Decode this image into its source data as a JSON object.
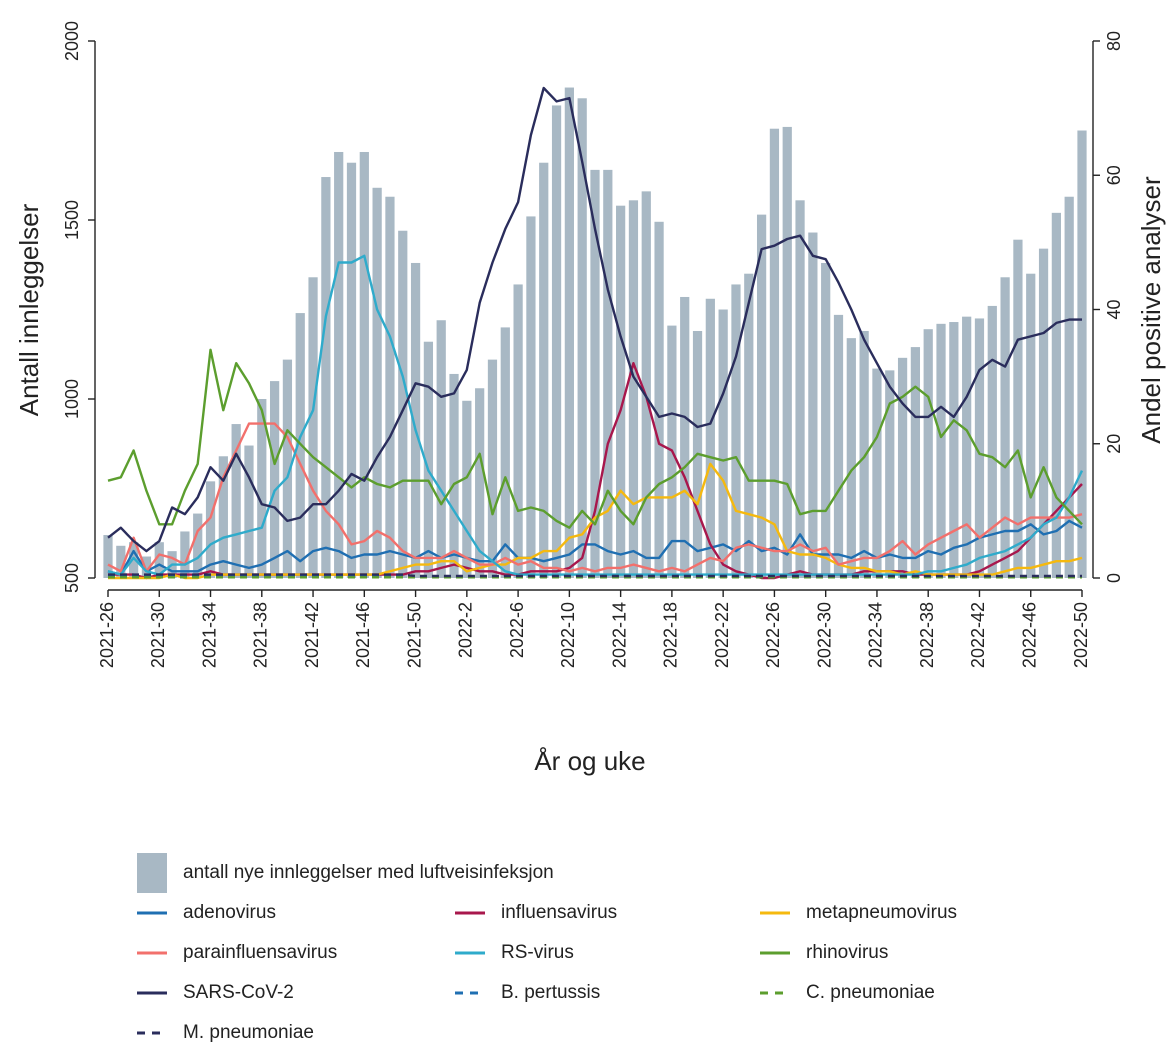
{
  "chart_data": {
    "type": "bar",
    "y_label": "Antall innleggelser",
    "y2_label": "Andel positive analyser",
    "x_label": "År og uke",
    "ylim": [
      500,
      2000
    ],
    "yticks": [
      500,
      1000,
      1500,
      2000
    ],
    "y2lim": [
      0,
      80
    ],
    "y2ticks": [
      0,
      20,
      40,
      60,
      80
    ],
    "categories": [
      "2021-26",
      null,
      null,
      null,
      "2021-30",
      null,
      null,
      null,
      "2021-34",
      null,
      null,
      null,
      "2021-38",
      null,
      null,
      null,
      "2021-42",
      null,
      null,
      null,
      "2021-46",
      null,
      null,
      null,
      "2021-50",
      null,
      null,
      null,
      "2022-2",
      null,
      null,
      null,
      "2022-6",
      null,
      null,
      null,
      "2022-10",
      null,
      null,
      null,
      "2022-14",
      null,
      null,
      null,
      "2022-18",
      null,
      null,
      null,
      "2022-22",
      null,
      null,
      null,
      "2022-26",
      null,
      null,
      null,
      "2022-30",
      null,
      null,
      null,
      "2022-34",
      null,
      null,
      null,
      "2022-38",
      null,
      null,
      null,
      "2022-42",
      null,
      null,
      null,
      "2022-46",
      null,
      null,
      null,
      "2022-50"
    ],
    "series": [
      {
        "name": "antall nye innleggelser med luftveisinfeksjon",
        "type": "bar",
        "color": "#a8b8c4",
        "values": [
          620,
          590,
          600,
          560,
          600,
          575,
          630,
          680,
          770,
          840,
          930,
          870,
          1000,
          1050,
          1110,
          1240,
          1340,
          1620,
          1690,
          1660,
          1690,
          1590,
          1565,
          1470,
          1380,
          1160,
          1220,
          1070,
          995,
          1030,
          1110,
          1200,
          1320,
          1510,
          1660,
          1820,
          1870,
          1840,
          1640,
          1640,
          1540,
          1555,
          1580,
          1495,
          1205,
          1285,
          1190,
          1280,
          1250,
          1320,
          1350,
          1515,
          1755,
          1760,
          1555,
          1465,
          1380,
          1235,
          1170,
          1190,
          1085,
          1080,
          1115,
          1145,
          1195,
          1210,
          1215,
          1230,
          1225,
          1260,
          1340,
          1445,
          1350,
          1420,
          1520,
          1565,
          1750
        ]
      },
      {
        "name": "adenovirus",
        "type": "line",
        "axis": "y2",
        "dash": false,
        "color": "#1f6fb2",
        "values": [
          1,
          0.5,
          4,
          1,
          2,
          1,
          1,
          1,
          2,
          2.5,
          2,
          1.5,
          2,
          3,
          4,
          2.5,
          4,
          4.5,
          4,
          3,
          3.5,
          3.5,
          4,
          3.5,
          3,
          4,
          3,
          3.5,
          3,
          2.5,
          2.5,
          5,
          3,
          3,
          2.5,
          3,
          3.5,
          5,
          5,
          4,
          3.5,
          4,
          3,
          3,
          5.5,
          5.5,
          4,
          4.5,
          5,
          4,
          5.5,
          4,
          4.5,
          3.5,
          6.5,
          3.5,
          3.5,
          3.5,
          3,
          4,
          3,
          3.5,
          3,
          3,
          4,
          3.5,
          4.5,
          5,
          6,
          6.5,
          7,
          7,
          8,
          6.5,
          7,
          8.5,
          7.5
        ]
      },
      {
        "name": "influensavirus",
        "type": "line",
        "axis": "y2",
        "dash": false,
        "color": "#a8174c",
        "values": [
          0.5,
          0.5,
          0.5,
          0,
          0.5,
          0.5,
          0.5,
          0.5,
          1,
          0.5,
          0.5,
          0.5,
          0.5,
          0.5,
          0.5,
          0.5,
          0.5,
          0.5,
          0.5,
          0.5,
          0.5,
          0.5,
          0.5,
          0.5,
          1,
          1,
          1.5,
          2,
          1.5,
          1,
          1,
          0.5,
          0.5,
          1,
          1,
          1,
          1.5,
          3,
          10,
          20,
          25,
          32,
          27,
          20,
          19,
          15,
          10,
          5,
          2,
          1,
          0.5,
          0,
          0,
          0.5,
          1,
          0.5,
          0.5,
          0.5,
          0.5,
          1,
          1,
          1,
          1,
          0.5,
          0.5,
          0.5,
          0.5,
          0.5,
          1,
          2,
          3,
          4,
          6,
          8,
          10,
          12,
          14
        ]
      },
      {
        "name": "metapneumovirus",
        "type": "line",
        "axis": "y2",
        "dash": false,
        "color": "#f5b90f",
        "values": [
          0,
          0,
          0,
          0,
          0,
          0.5,
          0,
          0,
          0.5,
          0.5,
          0.5,
          0.5,
          0.5,
          0.5,
          0.5,
          0.5,
          0.5,
          0.5,
          0.5,
          0.5,
          0.5,
          0.5,
          1,
          1.5,
          2,
          2,
          2.5,
          2.5,
          1,
          1.5,
          2,
          2,
          3,
          3,
          4,
          4,
          6,
          6.5,
          9,
          10,
          13,
          11,
          12,
          12,
          12,
          13,
          11,
          17,
          14.5,
          10,
          9.5,
          9,
          8,
          4,
          3.5,
          3.5,
          3,
          2,
          1.5,
          1.5,
          1,
          1,
          0.5,
          1,
          0.5,
          0.5,
          0.5,
          0.5,
          0.5,
          0.5,
          1,
          1.5,
          1.5,
          2,
          2.5,
          2.5,
          3
        ]
      },
      {
        "name": "parainfluensavirus",
        "type": "line",
        "axis": "y2",
        "dash": false,
        "color": "#f2706c",
        "values": [
          2,
          1,
          6,
          1,
          3.5,
          3,
          2,
          7,
          9,
          15,
          19,
          23,
          23,
          23,
          21,
          17,
          13,
          10,
          8,
          5,
          5.5,
          7,
          6,
          4,
          3,
          3,
          3,
          4,
          3,
          2,
          2,
          3,
          2,
          2.5,
          1.5,
          1.5,
          1,
          1.5,
          1,
          1.5,
          1.5,
          2,
          1.5,
          1,
          1.5,
          1,
          2,
          3,
          2.5,
          4.5,
          5,
          4.5,
          4,
          4,
          5,
          4,
          4.5,
          2,
          2.5,
          3,
          3,
          4,
          5.5,
          3.5,
          5,
          6,
          7,
          8,
          6,
          7.5,
          9,
          8,
          9,
          9,
          9,
          9,
          9.5
        ]
      },
      {
        "name": "RS-virus",
        "type": "line",
        "axis": "y2",
        "dash": false,
        "color": "#2fabcb",
        "values": [
          1,
          0.5,
          3,
          1,
          0.5,
          2,
          2,
          3,
          5,
          6,
          6.5,
          7,
          7.5,
          13,
          15,
          21,
          25,
          39,
          47,
          47,
          48,
          40,
          36,
          30,
          22,
          16,
          13,
          10,
          7,
          4,
          2.5,
          1,
          0.5,
          0.5,
          0.5,
          0.5,
          0.5,
          0.5,
          0.5,
          0.5,
          0.5,
          0.5,
          0.5,
          0.5,
          0.5,
          0.5,
          0.5,
          0.5,
          0.5,
          0.5,
          0.5,
          0.5,
          0.5,
          0.5,
          0.5,
          0.5,
          0.5,
          0.5,
          0.5,
          0.5,
          0.5,
          0.5,
          0.5,
          0.5,
          1,
          1,
          1.5,
          2,
          3,
          3.5,
          4,
          5,
          6,
          8,
          9,
          12,
          16
        ]
      },
      {
        "name": "rhinovirus",
        "type": "line",
        "axis": "y2",
        "dash": false,
        "color": "#5c9e2e",
        "values": [
          14.5,
          15,
          19,
          13,
          8,
          8,
          13,
          17,
          34,
          25,
          32,
          29,
          25,
          17,
          22,
          20,
          18,
          16.5,
          15,
          13.5,
          15,
          14,
          13.5,
          14.5,
          14.5,
          14.5,
          11,
          14,
          15,
          18.5,
          9.5,
          15,
          10,
          10.5,
          10,
          8.5,
          7.5,
          10,
          8,
          13,
          10,
          8,
          12,
          14,
          15,
          16.5,
          18.5,
          18,
          17.5,
          18,
          14.5,
          14.5,
          14.5,
          14,
          9.5,
          10,
          10,
          13,
          16,
          18,
          21,
          26,
          27,
          28.5,
          27,
          21,
          23.5,
          22,
          18.5,
          18,
          16.5,
          19,
          12,
          16.5,
          12,
          10,
          8
        ]
      },
      {
        "name": "SARS-CoV-2",
        "type": "line",
        "axis": "y2",
        "dash": false,
        "color": "#2a2d5c",
        "values": [
          6,
          7.5,
          5.5,
          4,
          5.5,
          10.5,
          9.5,
          12,
          16.5,
          14.5,
          18.5,
          15,
          11,
          10.5,
          8.5,
          9,
          11,
          11,
          13,
          15.5,
          14.5,
          18,
          21,
          25,
          29,
          28.5,
          27,
          27.5,
          31,
          41,
          47,
          52,
          56,
          66,
          73,
          71,
          71.5,
          62,
          52,
          43,
          36,
          30,
          27,
          24,
          24.5,
          24,
          22.5,
          23,
          27.5,
          33,
          41,
          49,
          49.5,
          50.5,
          51,
          48,
          47.5,
          44,
          40,
          35.5,
          32,
          28.5,
          26,
          24,
          24,
          25.5,
          24,
          27,
          31,
          32.5,
          31.5,
          35.5,
          36,
          36.5,
          38,
          38.5,
          38.5
        ]
      },
      {
        "name": "B. pertussis",
        "type": "line",
        "axis": "y2",
        "dash": true,
        "color": "#1f6fb2",
        "values": [
          0.2,
          0.2,
          0.2,
          0.2,
          0.2,
          0.2,
          0.2,
          0.2,
          0.2,
          0.2,
          0.2,
          0.2,
          0.2,
          0.2,
          0.2,
          0.2,
          0.2,
          0.2,
          0.2,
          0.2,
          0.2,
          0.2,
          0.2,
          0.2,
          0.2,
          0.2,
          0.2,
          0.2,
          0.2,
          0.2,
          0.2,
          0.2,
          0.2,
          0.2,
          0.2,
          0.2,
          0.2,
          0.2,
          0.2,
          0.2,
          0.2,
          0.2,
          0.2,
          0.2,
          0.2,
          0.2,
          0.2,
          0.2,
          0.2,
          0.2,
          0.2,
          0.2,
          0.2,
          0.2,
          0.2,
          0.2,
          0.2,
          0.2,
          0.2,
          0.2,
          0.2,
          0.2,
          0.2,
          0.2,
          0.2,
          0.2,
          0.2,
          0.2,
          0.2,
          0.2,
          0.2,
          0.2,
          0.2,
          0.2,
          0.2,
          0.2,
          0.2
        ]
      },
      {
        "name": "C. pneumoniae",
        "type": "line",
        "axis": "y2",
        "dash": true,
        "color": "#5c9e2e",
        "values": [
          0.1,
          0.1,
          0.1,
          0.1,
          0.1,
          0.1,
          0.1,
          0.1,
          0.1,
          0.1,
          0.1,
          0.1,
          0.1,
          0.1,
          0.1,
          0.1,
          0.1,
          0.1,
          0.1,
          0.1,
          0.1,
          0.1,
          0.1,
          0.1,
          0.1,
          0.1,
          0.1,
          0.1,
          0.1,
          0.1,
          0.1,
          0.1,
          0.1,
          0.1,
          0.1,
          0.1,
          0.1,
          0.1,
          0.1,
          0.1,
          0.1,
          0.1,
          0.1,
          0.1,
          0.1,
          0.1,
          0.1,
          0.1,
          0.1,
          0.1,
          0.1,
          0.1,
          0.1,
          0.1,
          0.1,
          0.1,
          0.1,
          0.1,
          0.1,
          0.1,
          0.1,
          0.1,
          0.1,
          0.1,
          0.1,
          0.1,
          0.1,
          0.1,
          0.1,
          0.1,
          0.1,
          0.1,
          0.1,
          0.1,
          0.1,
          0.1,
          0.1
        ]
      },
      {
        "name": "M. pneumoniae",
        "type": "line",
        "axis": "y2",
        "dash": true,
        "color": "#2a2d5c",
        "values": [
          0.5,
          0.5,
          0.5,
          0.5,
          0.5,
          0.5,
          0.5,
          0.5,
          0.5,
          0.5,
          0.5,
          0.5,
          0.5,
          0.5,
          0.5,
          0.5,
          0.5,
          0.5,
          0.5,
          0.5,
          0.5,
          0.5,
          0.5,
          0.5,
          0.3,
          0.3,
          0.3,
          0.3,
          0.3,
          0.3,
          0.3,
          0.3,
          0.3,
          0.3,
          0.3,
          0.3,
          0.3,
          0.3,
          0.3,
          0.3,
          0.3,
          0.3,
          0.3,
          0.3,
          0.3,
          0.3,
          0.3,
          0.3,
          0.3,
          0.3,
          0.3,
          0.3,
          0.3,
          0.3,
          0.3,
          0.3,
          0.3,
          0.3,
          0.3,
          0.3,
          0.3,
          0.3,
          0.3,
          0.3,
          0.3,
          0.3,
          0.3,
          0.3,
          0.3,
          0.3,
          0.3,
          0.3,
          0.3,
          0.3,
          0.3,
          0.3,
          0.3
        ]
      }
    ]
  }
}
